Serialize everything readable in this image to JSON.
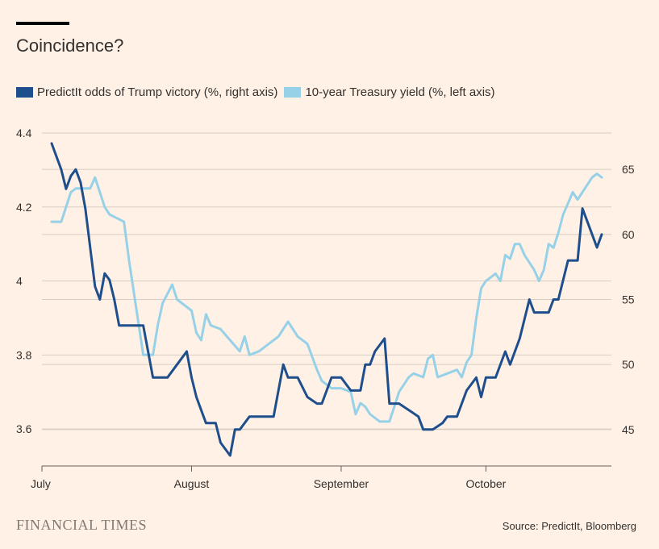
{
  "title": "Coincidence?",
  "legend": [
    {
      "label": "PredictIt odds of Trump victory (%, right axis)",
      "color": "#1f4e8c"
    },
    {
      "label": "10-year Treasury yield (%, left axis)",
      "color": "#97d1e8"
    }
  ],
  "source": "Source: PredictIt, Bloomberg",
  "brand": "FINANCIAL TIMES",
  "chart_data": {
    "type": "line",
    "left_axis": {
      "ticks": [
        3.6,
        3.8,
        4.0,
        4.2,
        4.4
      ],
      "tick_labels": [
        "3.6",
        "3.8",
        "4",
        "4.2",
        "4.4"
      ],
      "range": [
        3.5,
        4.4
      ]
    },
    "right_axis": {
      "ticks": [
        45,
        50,
        55,
        60,
        65
      ],
      "tick_labels": [
        "45",
        "50",
        "55",
        "60",
        "65"
      ],
      "range": [
        42.2,
        67.8
      ]
    },
    "x_axis": {
      "range": [
        "2024-07-01",
        "2024-10-27"
      ],
      "ticks": [
        "2024-07-01",
        "2024-08-01",
        "2024-09-01",
        "2024-10-01"
      ],
      "tick_labels": [
        "July",
        "August",
        "September",
        "October"
      ]
    },
    "grid": true,
    "legend_position": "top",
    "series": [
      {
        "name": "PredictIt odds of Trump victory (%, right axis)",
        "axis": "right",
        "color": "#1f4e8c",
        "points": [
          [
            "2024-07-03",
            67.0
          ],
          [
            "2024-07-05",
            65.0
          ],
          [
            "2024-07-06",
            63.5
          ],
          [
            "2024-07-07",
            64.5
          ],
          [
            "2024-07-08",
            65.0
          ],
          [
            "2024-07-09",
            64.0
          ],
          [
            "2024-07-10",
            62.0
          ],
          [
            "2024-07-11",
            59.0
          ],
          [
            "2024-07-12",
            56.0
          ],
          [
            "2024-07-13",
            55.0
          ],
          [
            "2024-07-14",
            57.0
          ],
          [
            "2024-07-15",
            56.5
          ],
          [
            "2024-07-16",
            55.0
          ],
          [
            "2024-07-17",
            53.0
          ],
          [
            "2024-07-18",
            53.0
          ],
          [
            "2024-07-22",
            53.0
          ],
          [
            "2024-07-23",
            51.0
          ],
          [
            "2024-07-24",
            49.0
          ],
          [
            "2024-07-27",
            49.0
          ],
          [
            "2024-07-29",
            50.0
          ],
          [
            "2024-07-31",
            51.0
          ],
          [
            "2024-08-01",
            49.0
          ],
          [
            "2024-08-02",
            47.5
          ],
          [
            "2024-08-03",
            46.5
          ],
          [
            "2024-08-04",
            45.5
          ],
          [
            "2024-08-05",
            45.5
          ],
          [
            "2024-08-06",
            45.5
          ],
          [
            "2024-08-07",
            44.0
          ],
          [
            "2024-08-09",
            43.0
          ],
          [
            "2024-08-10",
            45.0
          ],
          [
            "2024-08-11",
            45.0
          ],
          [
            "2024-08-13",
            46.0
          ],
          [
            "2024-08-18",
            46.0
          ],
          [
            "2024-08-19",
            48.0
          ],
          [
            "2024-08-20",
            50.0
          ],
          [
            "2024-08-21",
            49.0
          ],
          [
            "2024-08-23",
            49.0
          ],
          [
            "2024-08-25",
            47.5
          ],
          [
            "2024-08-27",
            47.0
          ],
          [
            "2024-08-28",
            47.0
          ],
          [
            "2024-08-30",
            49.0
          ],
          [
            "2024-09-01",
            49.0
          ],
          [
            "2024-09-03",
            48.0
          ],
          [
            "2024-09-05",
            48.0
          ],
          [
            "2024-09-06",
            50.0
          ],
          [
            "2024-09-07",
            50.0
          ],
          [
            "2024-09-08",
            51.0
          ],
          [
            "2024-09-10",
            52.0
          ],
          [
            "2024-09-11",
            47.0
          ],
          [
            "2024-09-13",
            47.0
          ],
          [
            "2024-09-15",
            46.5
          ],
          [
            "2024-09-17",
            46.0
          ],
          [
            "2024-09-18",
            45.0
          ],
          [
            "2024-09-20",
            45.0
          ],
          [
            "2024-09-22",
            45.5
          ],
          [
            "2024-09-23",
            46.0
          ],
          [
            "2024-09-25",
            46.0
          ],
          [
            "2024-09-27",
            48.0
          ],
          [
            "2024-09-29",
            49.0
          ],
          [
            "2024-09-30",
            47.5
          ],
          [
            "2024-10-01",
            49.0
          ],
          [
            "2024-10-03",
            49.0
          ],
          [
            "2024-10-05",
            51.0
          ],
          [
            "2024-10-06",
            50.0
          ],
          [
            "2024-10-08",
            52.0
          ],
          [
            "2024-10-10",
            55.0
          ],
          [
            "2024-10-11",
            54.0
          ],
          [
            "2024-10-14",
            54.0
          ],
          [
            "2024-10-15",
            55.0
          ],
          [
            "2024-10-16",
            55.0
          ],
          [
            "2024-10-18",
            58.0
          ],
          [
            "2024-10-19",
            58.0
          ],
          [
            "2024-10-20",
            58.0
          ],
          [
            "2024-10-21",
            62.0
          ],
          [
            "2024-10-22",
            61.0
          ],
          [
            "2024-10-24",
            59.0
          ],
          [
            "2024-10-25",
            60.0
          ]
        ]
      },
      {
        "name": "10-year Treasury yield (%, left axis)",
        "axis": "left",
        "color": "#97d1e8",
        "points": [
          [
            "2024-07-03",
            4.16
          ],
          [
            "2024-07-05",
            4.16
          ],
          [
            "2024-07-06",
            4.2
          ],
          [
            "2024-07-07",
            4.24
          ],
          [
            "2024-07-08",
            4.25
          ],
          [
            "2024-07-09",
            4.25
          ],
          [
            "2024-07-11",
            4.25
          ],
          [
            "2024-07-12",
            4.28
          ],
          [
            "2024-07-13",
            4.24
          ],
          [
            "2024-07-14",
            4.2
          ],
          [
            "2024-07-15",
            4.18
          ],
          [
            "2024-07-18",
            4.16
          ],
          [
            "2024-07-19",
            4.06
          ],
          [
            "2024-07-22",
            3.8
          ],
          [
            "2024-07-24",
            3.8
          ],
          [
            "2024-07-25",
            3.88
          ],
          [
            "2024-07-26",
            3.94
          ],
          [
            "2024-07-28",
            3.99
          ],
          [
            "2024-07-29",
            3.95
          ],
          [
            "2024-08-01",
            3.92
          ],
          [
            "2024-08-02",
            3.86
          ],
          [
            "2024-08-03",
            3.84
          ],
          [
            "2024-08-04",
            3.91
          ],
          [
            "2024-08-05",
            3.88
          ],
          [
            "2024-08-07",
            3.87
          ],
          [
            "2024-08-09",
            3.84
          ],
          [
            "2024-08-11",
            3.81
          ],
          [
            "2024-08-12",
            3.85
          ],
          [
            "2024-08-13",
            3.8
          ],
          [
            "2024-08-15",
            3.81
          ],
          [
            "2024-08-17",
            3.83
          ],
          [
            "2024-08-19",
            3.85
          ],
          [
            "2024-08-21",
            3.89
          ],
          [
            "2024-08-23",
            3.85
          ],
          [
            "2024-08-25",
            3.83
          ],
          [
            "2024-08-27",
            3.76
          ],
          [
            "2024-08-28",
            3.73
          ],
          [
            "2024-08-30",
            3.71
          ],
          [
            "2024-09-01",
            3.71
          ],
          [
            "2024-09-03",
            3.7
          ],
          [
            "2024-09-04",
            3.64
          ],
          [
            "2024-09-05",
            3.67
          ],
          [
            "2024-09-06",
            3.66
          ],
          [
            "2024-09-07",
            3.64
          ],
          [
            "2024-09-09",
            3.62
          ],
          [
            "2024-09-11",
            3.62
          ],
          [
            "2024-09-12",
            3.66
          ],
          [
            "2024-09-13",
            3.7
          ],
          [
            "2024-09-15",
            3.74
          ],
          [
            "2024-09-16",
            3.75
          ],
          [
            "2024-09-18",
            3.74
          ],
          [
            "2024-09-19",
            3.79
          ],
          [
            "2024-09-20",
            3.8
          ],
          [
            "2024-09-21",
            3.74
          ],
          [
            "2024-09-23",
            3.75
          ],
          [
            "2024-09-25",
            3.76
          ],
          [
            "2024-09-26",
            3.74
          ],
          [
            "2024-09-27",
            3.78
          ],
          [
            "2024-09-28",
            3.8
          ],
          [
            "2024-09-29",
            3.9
          ],
          [
            "2024-09-30",
            3.98
          ],
          [
            "2024-10-01",
            4.0
          ],
          [
            "2024-10-03",
            4.02
          ],
          [
            "2024-10-04",
            4.0
          ],
          [
            "2024-10-05",
            4.07
          ],
          [
            "2024-10-06",
            4.06
          ],
          [
            "2024-10-07",
            4.1
          ],
          [
            "2024-10-08",
            4.1
          ],
          [
            "2024-10-09",
            4.07
          ],
          [
            "2024-10-11",
            4.03
          ],
          [
            "2024-10-12",
            4.0
          ],
          [
            "2024-10-13",
            4.03
          ],
          [
            "2024-10-14",
            4.1
          ],
          [
            "2024-10-15",
            4.09
          ],
          [
            "2024-10-16",
            4.13
          ],
          [
            "2024-10-17",
            4.18
          ],
          [
            "2024-10-18",
            4.21
          ],
          [
            "2024-10-19",
            4.24
          ],
          [
            "2024-10-20",
            4.22
          ],
          [
            "2024-10-21",
            4.24
          ],
          [
            "2024-10-22",
            4.26
          ],
          [
            "2024-10-23",
            4.28
          ],
          [
            "2024-10-24",
            4.29
          ],
          [
            "2024-10-25",
            4.28
          ]
        ]
      }
    ]
  }
}
